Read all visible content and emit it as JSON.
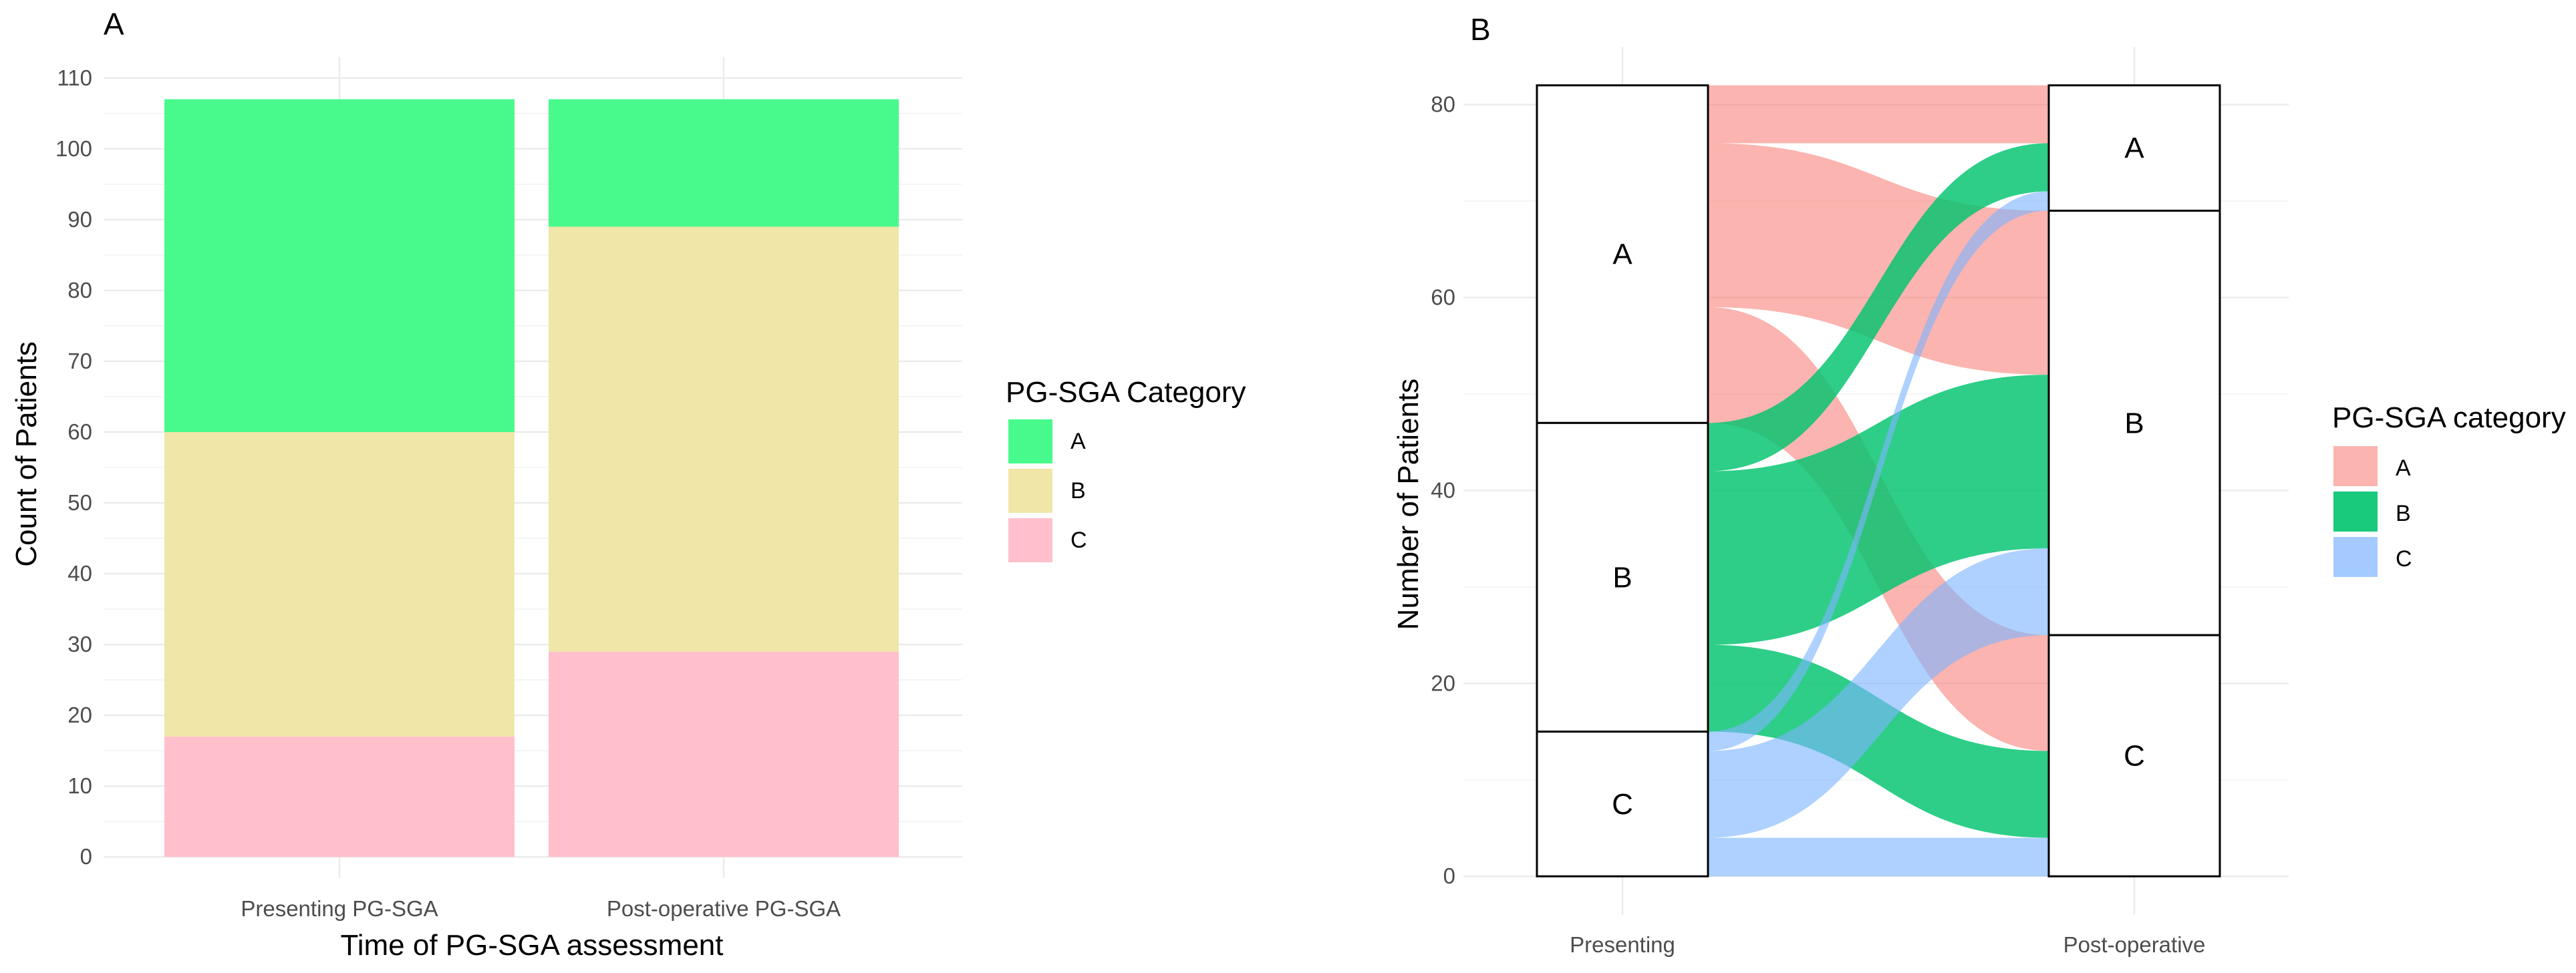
{
  "chart_data": [
    {
      "panel": "A",
      "type": "bar",
      "stacked": true,
      "title": "A",
      "xlabel": "Time of PG-SGA assessment",
      "ylabel": "Count of Patients",
      "categories": [
        "Presenting PG-SGA",
        "Post-operative PG-SGA"
      ],
      "series": [
        {
          "name": "C",
          "values": [
            17,
            29
          ],
          "color": "#FFC0CB"
        },
        {
          "name": "B",
          "values": [
            43,
            60
          ],
          "color": "#F0E6A8"
        },
        {
          "name": "A",
          "values": [
            47,
            18
          ],
          "color": "#48FA8C"
        }
      ],
      "ylim": [
        -3,
        113
      ],
      "yticks": [
        0,
        10,
        20,
        30,
        40,
        50,
        60,
        70,
        80,
        90,
        100,
        110
      ],
      "yticklabels": [
        "0",
        "10",
        "20",
        "30",
        "40",
        "50",
        "60",
        "70",
        "80",
        "90",
        "100",
        "110"
      ],
      "legend": {
        "title": "PG-SGA Category",
        "position": "right",
        "entries": [
          {
            "label": "A",
            "color": "#48FA8C"
          },
          {
            "label": "B",
            "color": "#F0E6A8"
          },
          {
            "label": "C",
            "color": "#FFC0CB"
          }
        ]
      }
    },
    {
      "panel": "B",
      "type": "alluvial",
      "title": "B",
      "xlabel": "",
      "ylabel": "Number of Patients",
      "axes": [
        "Presenting",
        "Post-operative"
      ],
      "strata": {
        "Presenting": [
          {
            "name": "A",
            "value": 35
          },
          {
            "name": "B",
            "value": 32
          },
          {
            "name": "C",
            "value": 15
          }
        ],
        "Post-operative": [
          {
            "name": "A",
            "value": 13
          },
          {
            "name": "B",
            "value": 44
          },
          {
            "name": "C",
            "value": 25
          }
        ]
      },
      "flows": [
        {
          "from": "A",
          "to": "A",
          "value": 6,
          "fill": "A"
        },
        {
          "from": "A",
          "to": "B",
          "value": 17,
          "fill": "A"
        },
        {
          "from": "A",
          "to": "C",
          "value": 12,
          "fill": "A"
        },
        {
          "from": "B",
          "to": "A",
          "value": 5,
          "fill": "B"
        },
        {
          "from": "B",
          "to": "B",
          "value": 18,
          "fill": "B"
        },
        {
          "from": "B",
          "to": "C",
          "value": 9,
          "fill": "B"
        },
        {
          "from": "C",
          "to": "A",
          "value": 2,
          "fill": "C"
        },
        {
          "from": "C",
          "to": "B",
          "value": 9,
          "fill": "C"
        },
        {
          "from": "C",
          "to": "C",
          "value": 4,
          "fill": "C"
        }
      ],
      "ylim": [
        -4,
        86
      ],
      "yticks": [
        0,
        20,
        40,
        60,
        80
      ],
      "yticklabels": [
        "0",
        "20",
        "40",
        "60",
        "80"
      ],
      "legend": {
        "title": "PG-SGA category",
        "position": "right",
        "entries": [
          {
            "label": "A",
            "color": "#F8766D"
          },
          {
            "label": "B",
            "color": "#00C36E"
          },
          {
            "label": "C",
            "color": "#7DB4FF"
          }
        ]
      }
    }
  ]
}
